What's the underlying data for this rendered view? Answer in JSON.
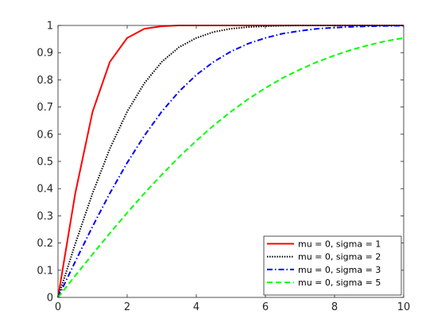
{
  "chart_data": {
    "type": "line",
    "title": "",
    "xlabel": "",
    "ylabel": "",
    "xlim": [
      0,
      10
    ],
    "ylim": [
      0,
      1
    ],
    "x_ticks": [
      0,
      2,
      4,
      6,
      8,
      10
    ],
    "x_tick_labels": [
      "0",
      "2",
      "4",
      "6",
      "8",
      "10"
    ],
    "y_ticks": [
      0,
      0.1,
      0.2,
      0.3,
      0.4,
      0.5,
      0.6,
      0.7,
      0.8,
      0.9,
      1
    ],
    "y_tick_labels": [
      "0",
      "0.1",
      "0.2",
      "0.3",
      "0.4",
      "0.5",
      "0.6",
      "0.7",
      "0.8",
      "0.9",
      "1"
    ],
    "grid": false,
    "legend_position": "bottom-right",
    "x": [
      0,
      0.5,
      1,
      1.5,
      2,
      2.5,
      3,
      3.5,
      4,
      4.5,
      5,
      5.5,
      6,
      6.5,
      7,
      7.5,
      8,
      8.5,
      9,
      9.5,
      10
    ],
    "series": [
      {
        "name": "mu = 0, sigma = 1",
        "color": "#ff0000",
        "style": "solid",
        "values": [
          0,
          0.383,
          0.683,
          0.866,
          0.954,
          0.988,
          0.997,
          1.0,
          1.0,
          1.0,
          1.0,
          1.0,
          1.0,
          1.0,
          1.0,
          1.0,
          1.0,
          1.0,
          1.0,
          1.0,
          1.0
        ]
      },
      {
        "name": "mu = 0, sigma = 2",
        "color": "#000000",
        "style": "dotted",
        "values": [
          0,
          0.197,
          0.383,
          0.547,
          0.683,
          0.788,
          0.866,
          0.92,
          0.954,
          0.976,
          0.988,
          0.994,
          0.997,
          0.999,
          1.0,
          1.0,
          1.0,
          1.0,
          1.0,
          1.0,
          1.0
        ]
      },
      {
        "name": "mu = 0, sigma = 3",
        "color": "#0000ff",
        "style": "dashdot",
        "values": [
          0,
          0.132,
          0.261,
          0.383,
          0.495,
          0.595,
          0.683,
          0.757,
          0.818,
          0.866,
          0.904,
          0.933,
          0.954,
          0.97,
          0.98,
          0.988,
          0.992,
          0.995,
          0.997,
          0.998,
          0.999
        ]
      },
      {
        "name": "mu = 0, sigma = 5",
        "color": "#00ff00",
        "style": "dashed",
        "values": [
          0,
          0.08,
          0.159,
          0.236,
          0.311,
          0.383,
          0.451,
          0.516,
          0.576,
          0.632,
          0.683,
          0.729,
          0.77,
          0.807,
          0.838,
          0.866,
          0.89,
          0.911,
          0.928,
          0.943,
          0.954
        ]
      }
    ]
  }
}
